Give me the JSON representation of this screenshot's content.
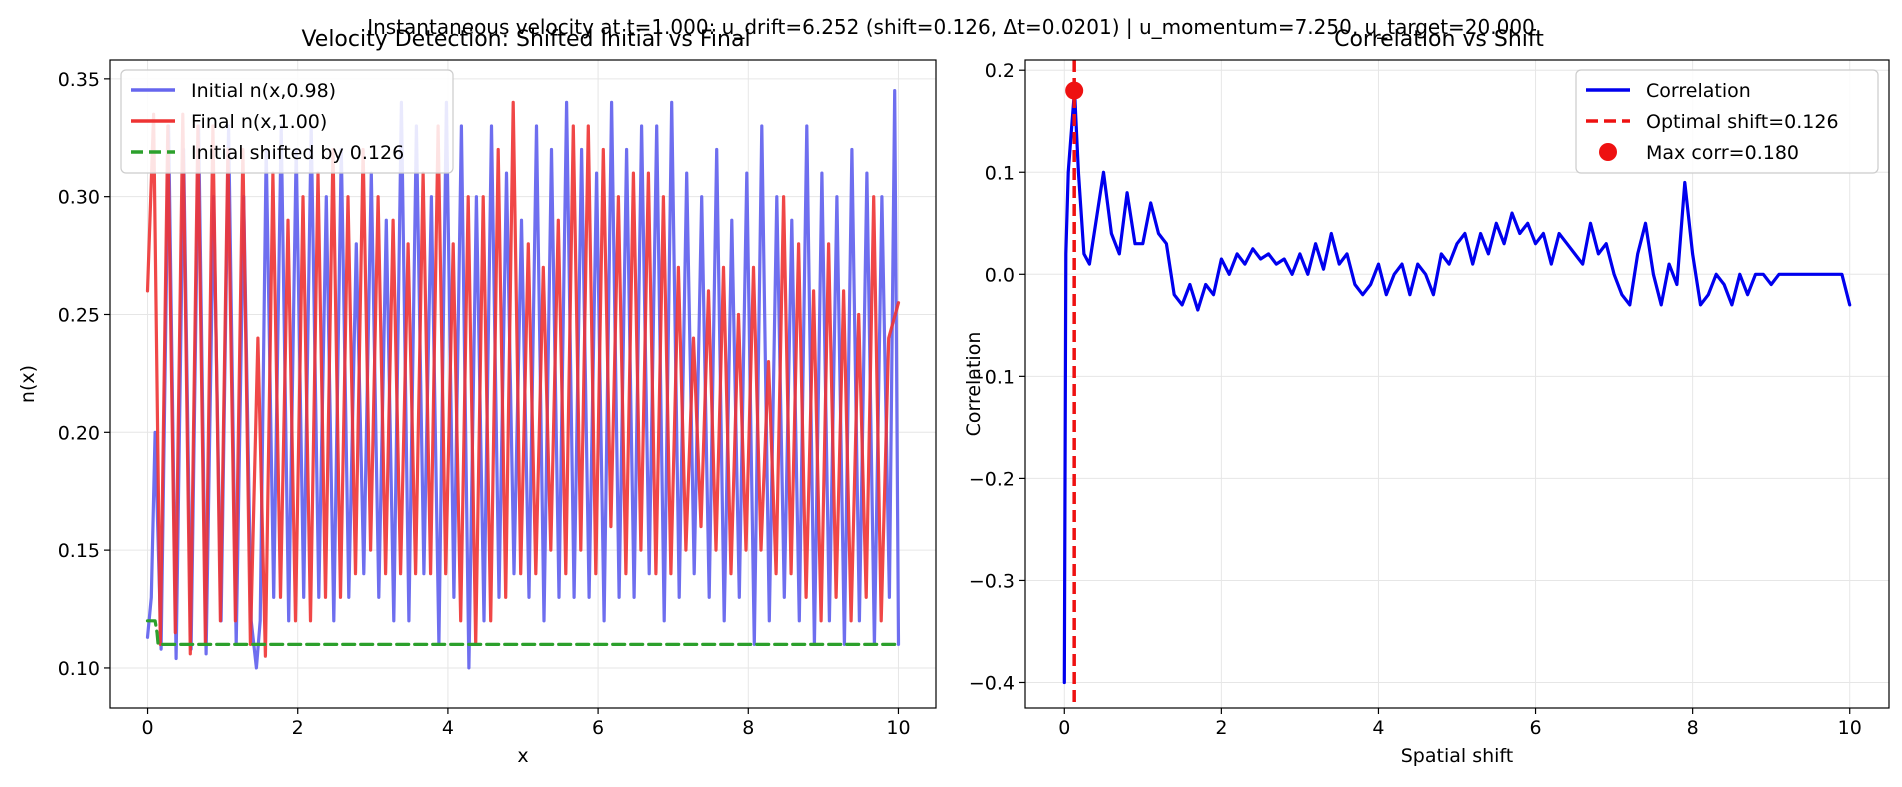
{
  "suptitle": "Instantaneous velocity at t=1.000: u_drift=6.252 (shift=0.126, Δt=0.0201) | u_momentum=7.250, u_target=20.000",
  "chart_data": [
    {
      "type": "line",
      "title": "Velocity Detection: Shifted Initial vs Final",
      "xlabel": "x",
      "ylabel": "n(x)",
      "xlim": [
        -0.5,
        10.5
      ],
      "ylim": [
        0.083,
        0.358
      ],
      "xticks": [
        0,
        2,
        4,
        6,
        8,
        10
      ],
      "xtick_labels": [
        "0",
        "2",
        "4",
        "6",
        "8",
        "10"
      ],
      "yticks": [
        0.1,
        0.15,
        0.2,
        0.25,
        0.3,
        0.35
      ],
      "ytick_labels": [
        "0.10",
        "0.15",
        "0.20",
        "0.25",
        "0.30",
        "0.35"
      ],
      "grid": true,
      "legend_position": "upper-left",
      "series": [
        {
          "name": "Initial n(x,0.98)",
          "color": "#6666ee",
          "style": "solid",
          "x": [
            0.0,
            0.05,
            0.1,
            0.18,
            0.28,
            0.38,
            0.48,
            0.58,
            0.68,
            0.78,
            0.88,
            0.98,
            1.08,
            1.18,
            1.28,
            1.38,
            1.45,
            1.5,
            1.58,
            1.68,
            1.78,
            1.88,
            1.98,
            2.08,
            2.18,
            2.28,
            2.38,
            2.48,
            2.58,
            2.68,
            2.78,
            2.88,
            2.98,
            3.08,
            3.18,
            3.28,
            3.38,
            3.48,
            3.58,
            3.68,
            3.78,
            3.88,
            3.98,
            4.08,
            4.18,
            4.28,
            4.38,
            4.48,
            4.58,
            4.68,
            4.78,
            4.88,
            4.98,
            5.08,
            5.18,
            5.28,
            5.38,
            5.48,
            5.58,
            5.68,
            5.78,
            5.88,
            5.98,
            6.08,
            6.18,
            6.28,
            6.38,
            6.48,
            6.58,
            6.68,
            6.78,
            6.88,
            6.98,
            7.08,
            7.18,
            7.28,
            7.38,
            7.48,
            7.58,
            7.68,
            7.78,
            7.88,
            7.98,
            8.08,
            8.18,
            8.28,
            8.38,
            8.48,
            8.58,
            8.68,
            8.78,
            8.88,
            8.98,
            9.08,
            9.18,
            9.28,
            9.38,
            9.48,
            9.58,
            9.68,
            9.78,
            9.88,
            9.95,
            10.0
          ],
          "y": [
            0.113,
            0.13,
            0.2,
            0.108,
            0.33,
            0.104,
            0.32,
            0.108,
            0.33,
            0.106,
            0.3,
            0.12,
            0.33,
            0.11,
            0.3,
            0.12,
            0.1,
            0.12,
            0.32,
            0.13,
            0.33,
            0.12,
            0.32,
            0.13,
            0.33,
            0.13,
            0.3,
            0.12,
            0.32,
            0.13,
            0.28,
            0.14,
            0.31,
            0.13,
            0.29,
            0.12,
            0.34,
            0.12,
            0.33,
            0.14,
            0.3,
            0.11,
            0.34,
            0.13,
            0.33,
            0.1,
            0.3,
            0.12,
            0.33,
            0.13,
            0.31,
            0.14,
            0.29,
            0.13,
            0.33,
            0.12,
            0.32,
            0.13,
            0.34,
            0.13,
            0.32,
            0.13,
            0.31,
            0.12,
            0.34,
            0.13,
            0.32,
            0.13,
            0.33,
            0.14,
            0.33,
            0.12,
            0.34,
            0.13,
            0.31,
            0.14,
            0.3,
            0.13,
            0.32,
            0.12,
            0.29,
            0.13,
            0.31,
            0.11,
            0.33,
            0.12,
            0.3,
            0.13,
            0.29,
            0.12,
            0.33,
            0.11,
            0.31,
            0.12,
            0.3,
            0.11,
            0.32,
            0.12,
            0.31,
            0.11,
            0.3,
            0.13,
            0.345,
            0.11
          ]
        },
        {
          "name": "Final n(x,1.00)",
          "color": "#ee3333",
          "style": "solid",
          "x": [
            0.0,
            0.08,
            0.17,
            0.27,
            0.37,
            0.47,
            0.57,
            0.67,
            0.77,
            0.87,
            0.97,
            1.07,
            1.17,
            1.27,
            1.37,
            1.47,
            1.57,
            1.67,
            1.77,
            1.87,
            1.97,
            2.07,
            2.17,
            2.27,
            2.37,
            2.47,
            2.57,
            2.67,
            2.77,
            2.87,
            2.97,
            3.07,
            3.17,
            3.27,
            3.37,
            3.47,
            3.57,
            3.67,
            3.77,
            3.87,
            3.97,
            4.07,
            4.17,
            4.27,
            4.37,
            4.47,
            4.57,
            4.67,
            4.77,
            4.87,
            4.97,
            5.07,
            5.17,
            5.27,
            5.37,
            5.47,
            5.57,
            5.67,
            5.77,
            5.87,
            5.97,
            6.07,
            6.17,
            6.27,
            6.37,
            6.47,
            6.57,
            6.67,
            6.77,
            6.87,
            6.97,
            7.07,
            7.17,
            7.27,
            7.37,
            7.47,
            7.57,
            7.67,
            7.77,
            7.87,
            7.97,
            8.07,
            8.17,
            8.27,
            8.37,
            8.47,
            8.57,
            8.67,
            8.77,
            8.87,
            8.97,
            9.07,
            9.17,
            9.27,
            9.37,
            9.47,
            9.57,
            9.67,
            9.77,
            9.87,
            10.0
          ],
          "y": [
            0.26,
            0.335,
            0.11,
            0.33,
            0.115,
            0.335,
            0.106,
            0.33,
            0.11,
            0.33,
            0.12,
            0.32,
            0.12,
            0.32,
            0.11,
            0.24,
            0.105,
            0.31,
            0.13,
            0.29,
            0.12,
            0.3,
            0.12,
            0.31,
            0.13,
            0.32,
            0.13,
            0.3,
            0.14,
            0.32,
            0.15,
            0.3,
            0.14,
            0.29,
            0.14,
            0.28,
            0.14,
            0.31,
            0.14,
            0.33,
            0.14,
            0.28,
            0.12,
            0.3,
            0.11,
            0.3,
            0.12,
            0.32,
            0.13,
            0.34,
            0.14,
            0.28,
            0.14,
            0.27,
            0.15,
            0.29,
            0.14,
            0.33,
            0.15,
            0.33,
            0.14,
            0.32,
            0.16,
            0.3,
            0.14,
            0.31,
            0.15,
            0.31,
            0.14,
            0.3,
            0.14,
            0.27,
            0.15,
            0.24,
            0.16,
            0.26,
            0.15,
            0.27,
            0.14,
            0.25,
            0.15,
            0.27,
            0.15,
            0.23,
            0.14,
            0.3,
            0.14,
            0.28,
            0.13,
            0.26,
            0.12,
            0.28,
            0.13,
            0.26,
            0.12,
            0.25,
            0.13,
            0.3,
            0.12,
            0.24,
            0.255
          ]
        },
        {
          "name": "Initial shifted by 0.126",
          "color": "#2ca02c",
          "style": "dashed",
          "x": [
            0.0,
            0.1,
            0.126,
            0.14,
            10.0
          ],
          "y": [
            0.12,
            0.12,
            0.115,
            0.11,
            0.11
          ]
        }
      ]
    },
    {
      "type": "line",
      "title": "Correlation vs Shift",
      "xlabel": "Spatial shift",
      "ylabel": "Correlation",
      "xlim": [
        -0.5,
        10.5
      ],
      "ylim": [
        -0.425,
        0.21
      ],
      "xticks": [
        0,
        2,
        4,
        6,
        8,
        10
      ],
      "xtick_labels": [
        "0",
        "2",
        "4",
        "6",
        "8",
        "10"
      ],
      "yticks": [
        -0.4,
        -0.3,
        -0.2,
        -0.1,
        0.0,
        0.1,
        0.2
      ],
      "ytick_labels": [
        "−0.4",
        "−0.3",
        "−0.2",
        "−0.1",
        "0.0",
        "0.1",
        "0.2"
      ],
      "grid": true,
      "legend_position": "upper-right",
      "series": [
        {
          "name": "Correlation",
          "color": "#0000ee",
          "style": "solid",
          "x": [
            0.0,
            0.02,
            0.05,
            0.1,
            0.13,
            0.18,
            0.25,
            0.32,
            0.4,
            0.5,
            0.6,
            0.7,
            0.8,
            0.9,
            1.0,
            1.1,
            1.2,
            1.3,
            1.4,
            1.5,
            1.6,
            1.7,
            1.8,
            1.9,
            2.0,
            2.1,
            2.2,
            2.3,
            2.4,
            2.5,
            2.6,
            2.7,
            2.8,
            2.9,
            3.0,
            3.1,
            3.2,
            3.3,
            3.4,
            3.5,
            3.6,
            3.7,
            3.8,
            3.9,
            4.0,
            4.1,
            4.2,
            4.3,
            4.4,
            4.5,
            4.6,
            4.7,
            4.8,
            4.9,
            5.0,
            5.1,
            5.2,
            5.3,
            5.4,
            5.5,
            5.6,
            5.7,
            5.8,
            5.9,
            6.0,
            6.1,
            6.2,
            6.3,
            6.4,
            6.5,
            6.6,
            6.7,
            6.8,
            6.9,
            7.0,
            7.1,
            7.2,
            7.3,
            7.4,
            7.5,
            7.6,
            7.7,
            7.8,
            7.9,
            8.0,
            8.1,
            8.2,
            8.3,
            8.4,
            8.5,
            8.6,
            8.7,
            8.8,
            8.9,
            9.0,
            9.1,
            9.2,
            9.3,
            9.4,
            9.5,
            9.6,
            9.7,
            9.8,
            9.9,
            10.0
          ],
          "y": [
            -0.4,
            0.02,
            0.1,
            0.15,
            0.18,
            0.1,
            0.02,
            0.01,
            0.05,
            0.1,
            0.04,
            0.02,
            0.08,
            0.03,
            0.03,
            0.07,
            0.04,
            0.03,
            -0.02,
            -0.03,
            -0.01,
            -0.035,
            -0.01,
            -0.02,
            0.015,
            0.0,
            0.02,
            0.01,
            0.025,
            0.015,
            0.02,
            0.01,
            0.015,
            0.0,
            0.02,
            0.0,
            0.03,
            0.005,
            0.04,
            0.01,
            0.02,
            -0.01,
            -0.02,
            -0.01,
            0.01,
            -0.02,
            0.0,
            0.01,
            -0.02,
            0.01,
            0.0,
            -0.02,
            0.02,
            0.01,
            0.03,
            0.04,
            0.01,
            0.04,
            0.02,
            0.05,
            0.03,
            0.06,
            0.04,
            0.05,
            0.03,
            0.04,
            0.01,
            0.04,
            0.03,
            0.02,
            0.01,
            0.05,
            0.02,
            0.03,
            0.0,
            -0.02,
            -0.03,
            0.02,
            0.05,
            0.0,
            -0.03,
            0.01,
            -0.01,
            0.09,
            0.02,
            -0.03,
            -0.02,
            0.0,
            -0.01,
            -0.03,
            0.0,
            -0.02,
            0.0,
            0.0,
            -0.01,
            0.0,
            0.0,
            0.0,
            0.0,
            0.0,
            0.0,
            0.0,
            0.0,
            0.0,
            -0.03
          ]
        }
      ],
      "vline": {
        "name": "Optimal shift=0.126",
        "x": 0.126,
        "color": "#ee1111",
        "style": "dashed"
      },
      "marker": {
        "name": "Max corr=0.180",
        "x": 0.126,
        "y": 0.18,
        "color": "#ee1111"
      }
    }
  ]
}
